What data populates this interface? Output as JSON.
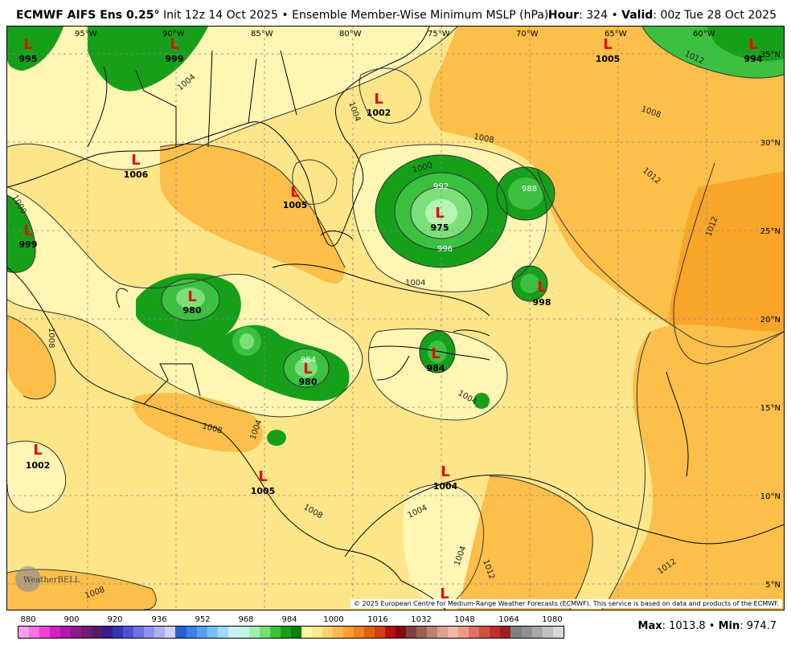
{
  "header": {
    "model": "ECMWF AIFS Ens 0.25",
    "degree": "°",
    "init": "Init 12z 14 Oct 2025",
    "bullet": "•",
    "product": "Ensemble Member-Wise Minimum MSLP (hPa)",
    "hour_label": "Hour",
    "hour_value": "324",
    "valid_label": "Valid",
    "valid_value": "00z Tue 28 Oct 2025"
  },
  "map": {
    "lon_labels": [
      "95°W",
      "90°W",
      "85°W",
      "80°W",
      "75°W",
      "70°W",
      "65°W",
      "60°W"
    ],
    "lat_labels": [
      "35°N",
      "30°N",
      "25°N",
      "20°N",
      "15°N",
      "10°N",
      "5°N"
    ],
    "lows": [
      {
        "symbol": "L",
        "value": "995"
      },
      {
        "symbol": "L",
        "value": "999"
      },
      {
        "symbol": "L",
        "value": "1006"
      },
      {
        "symbol": "L",
        "value": "1005"
      },
      {
        "symbol": "L",
        "value": "1002"
      },
      {
        "symbol": "L",
        "value": "975"
      },
      {
        "symbol": "L",
        "value": "1005"
      },
      {
        "symbol": "L",
        "value": "994"
      },
      {
        "symbol": "L",
        "value": "999"
      },
      {
        "symbol": "L",
        "value": "980"
      },
      {
        "symbol": "L",
        "value": "980"
      },
      {
        "symbol": "L",
        "value": "998"
      },
      {
        "symbol": "L",
        "value": "984"
      },
      {
        "symbol": "L",
        "value": "1002"
      },
      {
        "symbol": "L",
        "value": "1005"
      },
      {
        "symbol": "L",
        "value": "1004"
      },
      {
        "symbol": "L",
        "value": ""
      }
    ],
    "contour_labels": [
      "1004",
      "1008",
      "1012",
      "1000",
      "996",
      "992",
      "988",
      "984",
      "1004",
      "1008",
      "1012",
      "1000",
      "1004",
      "1008",
      "1004",
      "1008",
      "1012",
      "1004",
      "1004",
      "1008",
      "1012",
      "1012",
      "1004",
      "1008"
    ],
    "logo_text": "WeatherBELL",
    "copyright": "© 2025 European Centre for Medium-Range Weather Forecasts (ECMWF). This service is based on data and products of the ECMWF.",
    "colors": {
      "land_bg": "#fde68a",
      "pale": "#fff6b3",
      "orange_light": "#fbbf4a",
      "orange_dark": "#f9a52a",
      "green_dark": "#16a01a",
      "green_mid": "#3cc040",
      "green_light": "#7ce07a",
      "green_pale": "#b8f5b0"
    }
  },
  "colorbar": {
    "labels": [
      "880",
      "900",
      "920",
      "936",
      "952",
      "968",
      "984",
      "1000",
      "1016",
      "1032",
      "1048",
      "1064",
      "1080"
    ],
    "colors": [
      "#ff9cf0",
      "#ff6ee0",
      "#f040d8",
      "#d020c0",
      "#b01aa8",
      "#901888",
      "#741a78",
      "#5a1a6a",
      "#3a1a8a",
      "#3434b0",
      "#5050d0",
      "#7070e0",
      "#9090f0",
      "#b0b0f8",
      "#d0d0ff",
      "#2a60d0",
      "#3c80e8",
      "#58a0f0",
      "#78c0f8",
      "#a0d8ff",
      "#c8f0ff",
      "#c0f8e0",
      "#a0f0b0",
      "#70e070",
      "#40c040",
      "#18a018",
      "#0a800a",
      "#fff8a0",
      "#ffe88a",
      "#ffd070",
      "#ffb850",
      "#ffa030",
      "#f08020",
      "#e06010",
      "#d04010",
      "#b81010",
      "#8a0a0a",
      "#804040",
      "#a06050",
      "#c08070",
      "#e0a090",
      "#f0b8a8",
      "#f09888",
      "#e07060",
      "#d05040",
      "#c03030",
      "#a02020",
      "#808080",
      "#909090",
      "#a8a8a8",
      "#c0c0c0",
      "#d8d8d8"
    ]
  },
  "stats": {
    "max_label": "Max",
    "max_value": "1013.8",
    "min_label": "Min",
    "min_value": "974.7",
    "separator": "•"
  }
}
